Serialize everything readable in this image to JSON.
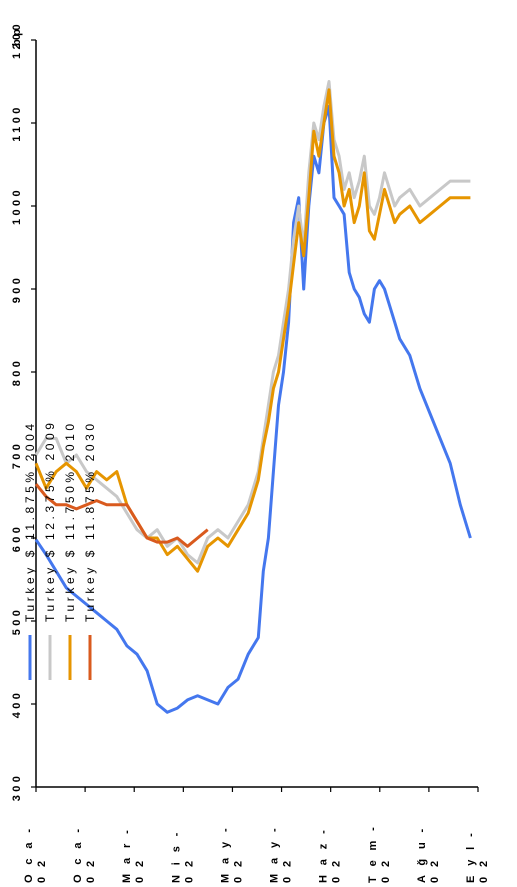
{
  "chart_data": {
    "type": "line",
    "title": "",
    "ylabel": "bp",
    "xlabel": "",
    "ylim": [
      300,
      1200
    ],
    "y_ticks": [
      "300",
      "400",
      "500",
      "600",
      "700",
      "800",
      "900",
      "1000",
      "1100",
      "1200"
    ],
    "x_ticks": [
      "Oca-02",
      "Oca-02",
      "Mar-02",
      "Nis-02",
      "May-02",
      "May-02",
      "Haz-02",
      "Tem-02",
      "Ağu-02",
      "Eyl-"
    ],
    "x_ticks_display": [
      "O c a -\n0 2",
      "O c a -\n0 2",
      "M a r -\n0 2",
      "N i s -\n0 2",
      "M a y -\n0 2",
      "M a y -\n0 2",
      "H a z -\n0 2",
      "T e m -\n0 2",
      "A ğ u -\n0 2",
      "E y l -\n0 2"
    ],
    "x_index_range": [
      0,
      175
    ],
    "orientation": "rotated-90-clockwise",
    "legend_position": "upper-left (inside plot)",
    "grid": false,
    "series": [
      {
        "name": "Turkey $ 11.875% 2004",
        "color": "#4477ee",
        "x": [
          0,
          4,
          8,
          12,
          16,
          20,
          24,
          28,
          32,
          36,
          40,
          44,
          48,
          52,
          56,
          60,
          64,
          68,
          72,
          76,
          80,
          84,
          88,
          90,
          92,
          94,
          96,
          98,
          100,
          102,
          104,
          106,
          108,
          110,
          112,
          114,
          116,
          118,
          120,
          122,
          124,
          126,
          128,
          130,
          132,
          134,
          136,
          138,
          140,
          142,
          144,
          148,
          152,
          156,
          160,
          164,
          168,
          172
        ],
        "values": [
          598,
          580,
          560,
          540,
          530,
          520,
          510,
          500,
          490,
          470,
          460,
          440,
          400,
          390,
          395,
          405,
          410,
          405,
          400,
          420,
          430,
          460,
          480,
          560,
          600,
          680,
          760,
          800,
          860,
          980,
          1010,
          900,
          1000,
          1060,
          1040,
          1100,
          1120,
          1010,
          1000,
          990,
          920,
          900,
          890,
          870,
          860,
          900,
          910,
          900,
          880,
          860,
          840,
          820,
          780,
          750,
          720,
          690,
          640,
          600
        ]
      },
      {
        "name": "Turkey $ 12.375% 2009",
        "color": "#c8c8c8",
        "x": [
          0,
          4,
          8,
          12,
          16,
          20,
          24,
          28,
          32,
          36,
          40,
          44,
          48,
          52,
          56,
          60,
          64,
          68,
          72,
          76,
          80,
          84,
          88,
          90,
          92,
          94,
          96,
          98,
          100,
          102,
          104,
          106,
          108,
          110,
          112,
          114,
          116,
          118,
          120,
          122,
          124,
          126,
          128,
          130,
          132,
          134,
          136,
          138,
          140,
          142,
          144,
          148,
          152,
          156,
          160,
          164,
          168,
          172
        ],
        "values": [
          700,
          720,
          720,
          690,
          700,
          680,
          670,
          660,
          650,
          630,
          610,
          600,
          610,
          590,
          600,
          580,
          570,
          600,
          610,
          600,
          620,
          640,
          680,
          720,
          760,
          800,
          820,
          860,
          900,
          960,
          1000,
          950,
          1040,
          1100,
          1080,
          1120,
          1150,
          1080,
          1060,
          1020,
          1040,
          1010,
          1030,
          1060,
          1000,
          990,
          1010,
          1040,
          1020,
          1000,
          1010,
          1020,
          1000,
          1010,
          1020,
          1030,
          1030,
          1030
        ]
      },
      {
        "name": "Turkey $ 11.750% 2010",
        "color": "#e69500",
        "x": [
          0,
          4,
          8,
          12,
          16,
          20,
          24,
          28,
          32,
          36,
          40,
          44,
          48,
          52,
          56,
          60,
          64,
          68,
          72,
          76,
          80,
          84,
          88,
          90,
          92,
          94,
          96,
          98,
          100,
          102,
          104,
          106,
          108,
          110,
          112,
          114,
          116,
          118,
          120,
          122,
          124,
          126,
          128,
          130,
          132,
          134,
          136,
          138,
          140,
          142,
          144,
          148,
          152,
          156,
          160,
          164,
          168,
          172
        ],
        "values": [
          690,
          660,
          680,
          690,
          680,
          660,
          680,
          670,
          680,
          640,
          620,
          600,
          600,
          580,
          590,
          575,
          560,
          590,
          600,
          590,
          610,
          630,
          670,
          710,
          740,
          780,
          800,
          840,
          880,
          930,
          980,
          940,
          1010,
          1090,
          1060,
          1100,
          1140,
          1060,
          1040,
          1000,
          1020,
          980,
          1000,
          1040,
          970,
          960,
          990,
          1020,
          1000,
          980,
          990,
          1000,
          980,
          990,
          1000,
          1010,
          1010,
          1010
        ]
      },
      {
        "name": "Turkey $ 11.875% 2030",
        "color": "#d95a1e",
        "x": [
          0,
          4,
          8,
          12,
          16,
          20,
          24,
          28,
          32,
          36,
          40,
          44,
          48,
          52,
          56,
          60,
          64,
          68
        ],
        "values": [
          665,
          650,
          640,
          640,
          635,
          640,
          645,
          640,
          640,
          640,
          620,
          600,
          595,
          595,
          600,
          590,
          600,
          610
        ]
      }
    ]
  }
}
